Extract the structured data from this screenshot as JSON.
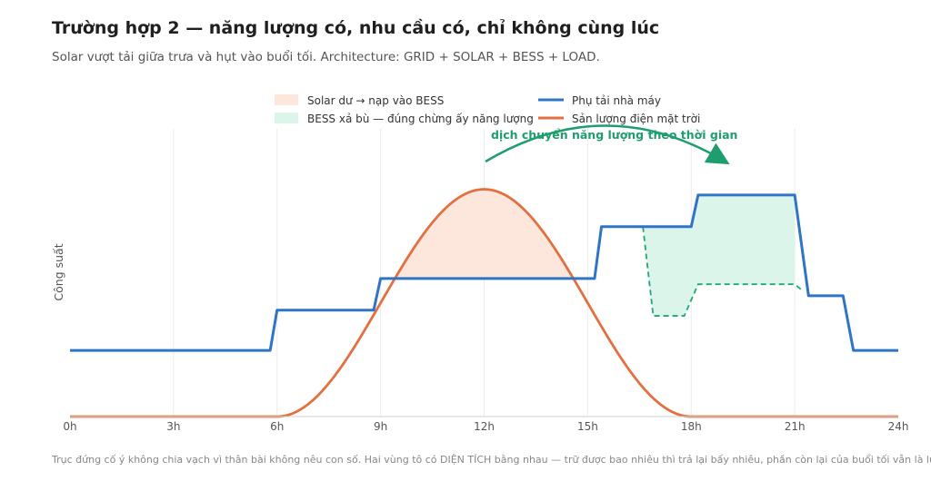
{
  "title": "Trường hợp 2 — năng lượng có, nhu cầu có, chỉ không cùng lúc",
  "subtitle": "Solar vượt tải giữa trưa và hụt vào buổi tối. Architecture: GRID + SOLAR + BESS + LOAD.",
  "footnote": "Trục đứng cố ý không chia vạch vì thân bài không nêu con số. Hai vùng tô có DIỆN TÍCH bằng nhau — trữ được bao nhiêu thì trả lại bấy nhiêu, phần còn lại của buổi tối vẫn là lưới.",
  "colors": {
    "load": "#2f74c7",
    "solar": "#e46f3f",
    "charge_fill": "#fde6dc",
    "discharge_fill": "#dcf5ea",
    "discharge_line": "#1fa874",
    "annotation": "#1e9e6e"
  },
  "chart_data": {
    "type": "line",
    "xlabel": "",
    "ylabel": "Công suất",
    "xlim": [
      0,
      24
    ],
    "ylim": [
      0,
      100
    ],
    "x_ticks": [
      "0h",
      "3h",
      "6h",
      "9h",
      "12h",
      "15h",
      "18h",
      "21h",
      "24h"
    ],
    "x_tick_values": [
      0,
      3,
      6,
      9,
      12,
      15,
      18,
      21,
      24
    ],
    "grid": "vertical",
    "y_ticks": "none",
    "legend": "top-center",
    "series": [
      {
        "name": "Phụ tải nhà máy",
        "color": "#2f74c7",
        "points": [
          [
            0,
            23
          ],
          [
            5.8,
            23
          ],
          [
            6.0,
            37
          ],
          [
            8.8,
            37
          ],
          [
            9.0,
            48
          ],
          [
            15.2,
            48
          ],
          [
            15.4,
            66
          ],
          [
            18.0,
            66
          ],
          [
            18.2,
            77
          ],
          [
            21.0,
            77
          ],
          [
            21.4,
            42
          ],
          [
            22.4,
            42
          ],
          [
            22.7,
            23
          ],
          [
            24,
            23
          ]
        ]
      },
      {
        "name": "Sản lượng điện mặt trời",
        "color": "#e46f3f",
        "shape": "bell",
        "start": 6,
        "end": 18,
        "peak_x": 12,
        "peak_y": 79
      }
    ],
    "areas": [
      {
        "label": "Solar dư → nạp vào BESS",
        "color": "#fde6dc",
        "range": [
          9.0,
          15.0
        ]
      },
      {
        "label": "BESS xả bù — đúng chừng ấy năng lượng",
        "color": "#dcf5ea",
        "range": [
          16.6,
          21.0
        ]
      }
    ],
    "grid_residual": {
      "style": "dashed",
      "points": [
        [
          16.6,
          66
        ],
        [
          16.9,
          35
        ],
        [
          17.8,
          35
        ],
        [
          18.2,
          46
        ],
        [
          21.0,
          46
        ],
        [
          21.2,
          44
        ]
      ]
    },
    "annotation": "dịch chuyển năng lượng theo thời gian"
  }
}
